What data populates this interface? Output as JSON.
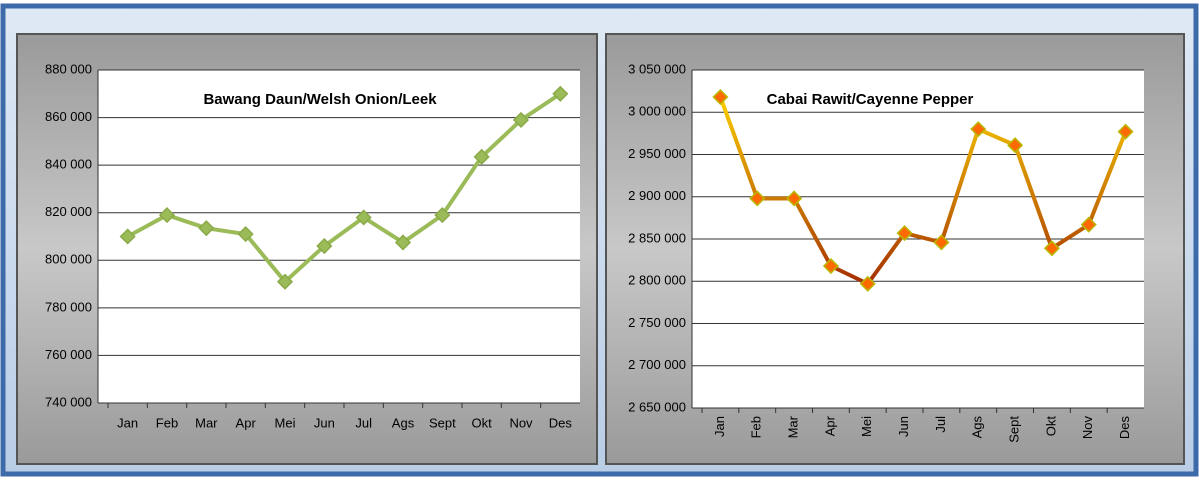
{
  "chart_data": [
    {
      "type": "line",
      "title": "Bawang Daun/Welsh Onion/Leek",
      "categories": [
        "Jan",
        "Feb",
        "Mar",
        "Apr",
        "Mei",
        "Jun",
        "Jul",
        "Ags",
        "Sept",
        "Okt",
        "Nov",
        "Des"
      ],
      "series": [
        {
          "color": "#9bbb59",
          "values": [
            810000,
            819000,
            813500,
            811000,
            791000,
            806000,
            818000,
            807500,
            819000,
            843500,
            859000,
            870000
          ]
        }
      ],
      "ylim": [
        740000,
        880000
      ],
      "yticks": [
        {
          "value": 740000,
          "label": "740 000"
        },
        {
          "value": 760000,
          "label": "760 000"
        },
        {
          "value": 780000,
          "label": "780 000"
        },
        {
          "value": 800000,
          "label": "800 000"
        },
        {
          "value": 820000,
          "label": "820 000"
        },
        {
          "value": 840000,
          "label": "840 000"
        },
        {
          "value": 860000,
          "label": "860 000"
        },
        {
          "value": 880000,
          "label": "880 000"
        }
      ],
      "grid": true
    },
    {
      "type": "line",
      "title": "Cabai Rawit/Cayenne Pepper",
      "categories": [
        "Jan",
        "Feb",
        "Mar",
        "Apr",
        "Mei",
        "Jun",
        "Jul",
        "Ags",
        "Sept",
        "Okt",
        "Nov",
        "Des"
      ],
      "series": [
        {
          "color": "#ff6a00",
          "color_scale": [
            "#8b0000",
            "#ffd700"
          ],
          "values": [
            3018000,
            2898000,
            2898000,
            2818000,
            2797000,
            2857000,
            2846000,
            2980000,
            2961000,
            2839000,
            2867000,
            2977000
          ]
        }
      ],
      "ylim": [
        2650000,
        3050000
      ],
      "yticks": [
        {
          "value": 2650000,
          "label": "2 650 000"
        },
        {
          "value": 2700000,
          "label": "2 700 000"
        },
        {
          "value": 2750000,
          "label": "2 750 000"
        },
        {
          "value": 2800000,
          "label": "2 800 000"
        },
        {
          "value": 2850000,
          "label": "2 850 000"
        },
        {
          "value": 2900000,
          "label": "2 900 000"
        },
        {
          "value": 2950000,
          "label": "2 950 000"
        },
        {
          "value": 3000000,
          "label": "3 000 000"
        },
        {
          "value": 3050000,
          "label": "3 050 000"
        }
      ],
      "grid": true,
      "rotate_xlabels": true
    }
  ]
}
